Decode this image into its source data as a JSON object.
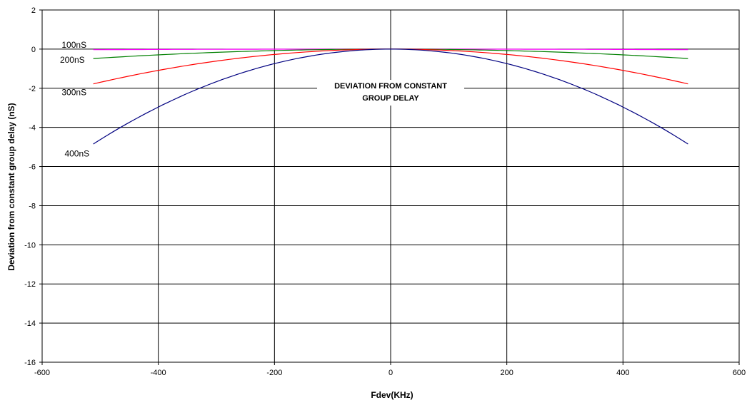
{
  "chart_data": {
    "type": "line",
    "title": "",
    "xlabel": "Fdev(KHz)",
    "ylabel": "Deviation from constant group delay (nS)",
    "xlim": [
      -600,
      600
    ],
    "ylim": [
      -16,
      2
    ],
    "x_ticks": [
      "-600",
      "-400",
      "-200",
      "0",
      "200",
      "400",
      "600"
    ],
    "y_ticks": [
      "2",
      "0",
      "-2",
      "-4",
      "-6",
      "-8",
      "-10",
      "-12",
      "-14",
      "-16"
    ],
    "grid": true,
    "legend": "none",
    "annotation": [
      "DEVIATION FROM CONSTANT",
      "GROUP DELAY"
    ],
    "series": [
      {
        "name": "100nS",
        "color": "#ff00ff",
        "x": [
          -512,
          -448,
          -384,
          -320,
          -256,
          -192,
          -128,
          -64,
          0,
          64,
          128,
          192,
          256,
          320,
          384,
          448,
          512
        ],
        "y": [
          -0.03,
          -0.02,
          -0.02,
          -0.01,
          -0.01,
          0,
          0,
          0,
          0,
          0,
          0,
          0,
          -0.01,
          -0.01,
          -0.02,
          -0.02,
          -0.03
        ]
      },
      {
        "name": "200nS",
        "color": "#008000",
        "x": [
          -512,
          -448,
          -384,
          -320,
          -256,
          -192,
          -128,
          -64,
          0,
          64,
          128,
          192,
          256,
          320,
          384,
          448,
          512
        ],
        "y": [
          -0.48,
          -0.37,
          -0.27,
          -0.19,
          -0.12,
          -0.07,
          -0.03,
          -0.01,
          0,
          -0.01,
          -0.03,
          -0.07,
          -0.12,
          -0.19,
          -0.27,
          -0.37,
          -0.48
        ]
      },
      {
        "name": "300nS",
        "color": "#ff0000",
        "x": [
          -512,
          -448,
          -384,
          -320,
          -256,
          -192,
          -128,
          -64,
          0,
          64,
          128,
          192,
          256,
          320,
          384,
          448,
          512
        ],
        "y": [
          -1.78,
          -1.37,
          -1.02,
          -0.72,
          -0.47,
          -0.27,
          -0.12,
          -0.03,
          0,
          -0.03,
          -0.12,
          -0.27,
          -0.47,
          -0.72,
          -1.02,
          -1.37,
          -1.78
        ]
      },
      {
        "name": "400nS",
        "color": "#000080",
        "x": [
          -512,
          -448,
          -384,
          -320,
          -256,
          -192,
          -128,
          -64,
          0,
          64,
          128,
          192,
          256,
          320,
          384,
          448,
          512
        ],
        "y": [
          -4.85,
          -3.65,
          -2.65,
          -1.82,
          -1.16,
          -0.64,
          -0.28,
          -0.07,
          0,
          -0.07,
          -0.28,
          -0.64,
          -1.16,
          -1.82,
          -2.65,
          -3.65,
          -4.85
        ]
      }
    ],
    "series_labels": [
      {
        "text": "100nS",
        "x": -545,
        "y": 0.22
      },
      {
        "text": "200nS",
        "x": -548,
        "y": -0.55
      },
      {
        "text": "300nS",
        "x": -545,
        "y": -2.2
      },
      {
        "text": "400nS",
        "x": -540,
        "y": -5.35
      }
    ]
  }
}
